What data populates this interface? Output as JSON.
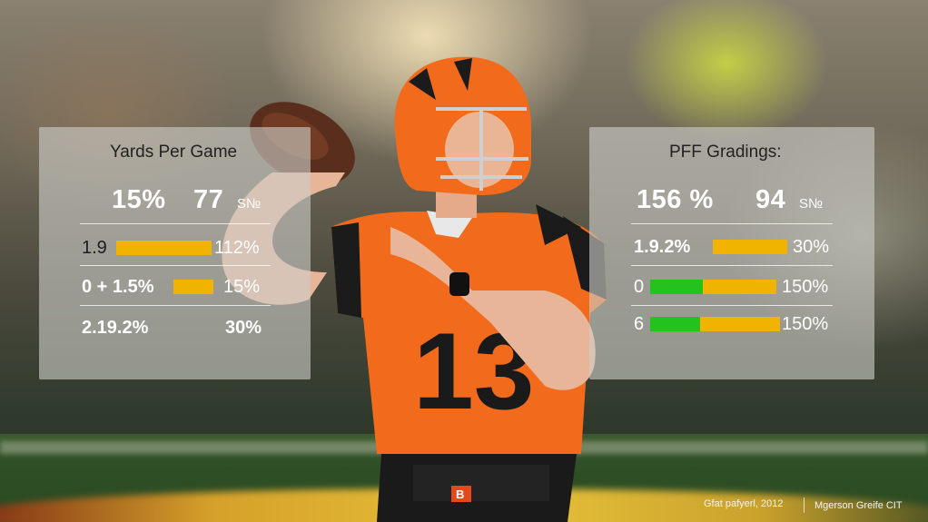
{
  "left_panel": {
    "title": "Yards Per Game",
    "big_left": "15%",
    "big_right": "77",
    "big_suffix": "S№",
    "rows": [
      {
        "label": "1.9",
        "value": "112%"
      },
      {
        "label": "0 + 1.5%",
        "value": "15%"
      },
      {
        "label": "2.19.2%",
        "value": "30%"
      }
    ]
  },
  "right_panel": {
    "title": "PFF Gradings:",
    "big_left": "156 %",
    "big_right": "94",
    "big_suffix": "S№",
    "rows": [
      {
        "label": "1.9.2%",
        "value": "30%"
      },
      {
        "label": "0",
        "value": "150%"
      },
      {
        "label": "6",
        "value": "150%"
      }
    ]
  },
  "jersey": {
    "number": "13",
    "belt_logo": "B"
  },
  "captions": {
    "left": "Gfat pafyerl, 2012",
    "right": "Mgerson Greife CIT"
  },
  "colors": {
    "bar_amber": "#f0b400",
    "bar_green": "#23c21d",
    "jersey_orange": "#f26a1b"
  }
}
